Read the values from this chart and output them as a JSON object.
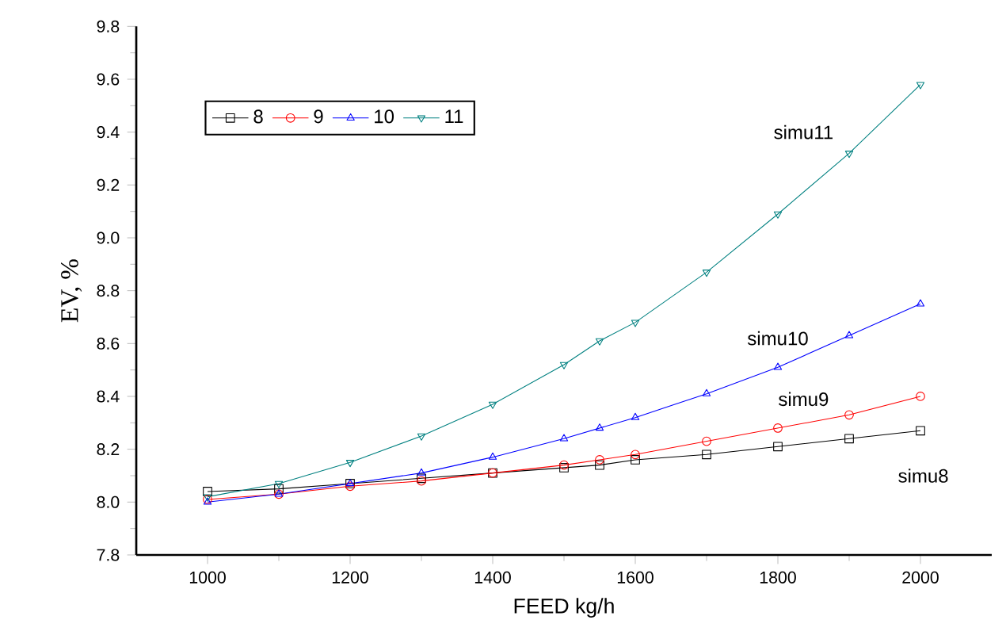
{
  "chart_data": {
    "type": "line",
    "xlabel": "FEED kg/h",
    "ylabel": "EV, %",
    "xlim": [
      900,
      2100
    ],
    "xticks": [
      1000,
      1200,
      1400,
      1600,
      1800,
      2000
    ],
    "ylim": [
      7.8,
      9.8
    ],
    "yticks": [
      {
        "value": 7.8,
        "label": "7.8"
      },
      {
        "value": 8.0,
        "label": "8.0"
      },
      {
        "value": 8.2,
        "label": "8.2"
      },
      {
        "value": 8.4,
        "label": "8.4"
      },
      {
        "value": 8.6,
        "label": "8.6"
      },
      {
        "value": 8.8,
        "label": "8.8"
      },
      {
        "value": 9.0,
        "label": "9.0"
      },
      {
        "value": 9.2,
        "label": "9.2"
      },
      {
        "value": 9.4,
        "label": "9.4"
      },
      {
        "value": 9.6,
        "label": "9.6"
      },
      {
        "value": 9.8,
        "label": "9.8"
      }
    ],
    "x": [
      1000,
      1100,
      1200,
      1300,
      1400,
      1500,
      1550,
      1600,
      1700,
      1800,
      1900,
      2000
    ],
    "series": [
      {
        "name": "8",
        "color": "#000000",
        "marker": "square",
        "values": [
          8.04,
          8.05,
          8.07,
          8.09,
          8.11,
          8.13,
          8.14,
          8.16,
          8.18,
          8.21,
          8.24,
          8.27
        ]
      },
      {
        "name": "9",
        "color": "#ff0000",
        "marker": "circle",
        "values": [
          8.01,
          8.03,
          8.06,
          8.08,
          8.11,
          8.14,
          8.16,
          8.18,
          8.23,
          8.28,
          8.33,
          8.4
        ]
      },
      {
        "name": "10",
        "color": "#0000ff",
        "marker": "triangle",
        "values": [
          8.0,
          8.03,
          8.07,
          8.11,
          8.17,
          8.24,
          8.28,
          8.32,
          8.41,
          8.51,
          8.63,
          8.75
        ]
      },
      {
        "name": "11",
        "color": "#008080",
        "marker": "triangle_down",
        "values": [
          8.02,
          8.07,
          8.15,
          8.25,
          8.37,
          8.52,
          8.61,
          8.68,
          8.87,
          9.09,
          9.32,
          9.58
        ]
      }
    ],
    "annotations": [
      "simu11",
      "simu10",
      "simu9",
      "simu8"
    ],
    "legend": "top left",
    "grid": false,
    "line_style": "solid"
  }
}
